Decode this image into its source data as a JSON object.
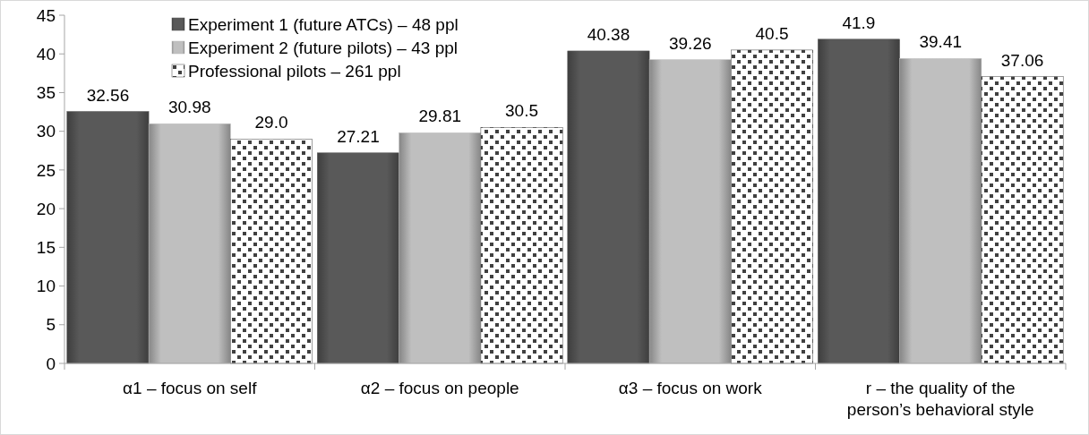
{
  "chart_data": {
    "type": "bar",
    "categories": [
      "α1 – focus on self",
      "α2 – focus on people",
      "α3 – focus on work",
      "r – the quality of the person’s behavioral style"
    ],
    "series": [
      {
        "name": "Experiment 1 (future ATCs) – 48 ppl",
        "color": "#595959",
        "values": [
          32.56,
          27.21,
          40.38,
          41.9
        ],
        "value_labels": [
          "32.56",
          "27.21",
          "40.38",
          "41.9"
        ]
      },
      {
        "name": "Experiment 2 (future pilots) – 43 ppl",
        "color": "#bfbfbf",
        "values": [
          30.98,
          29.81,
          39.26,
          39.41
        ],
        "value_labels": [
          "30.98",
          "29.81",
          "39.26",
          "39.41"
        ]
      },
      {
        "name": "Professional pilots – 261 ppl",
        "color": "#404040",
        "values": [
          29.0,
          30.5,
          40.5,
          37.06
        ],
        "value_labels": [
          "29.0",
          "30.5",
          "40.5",
          "37.06"
        ]
      }
    ],
    "ylim": [
      0,
      45
    ],
    "yticks": [
      0,
      5,
      10,
      15,
      20,
      25,
      30,
      35,
      40,
      45
    ],
    "legend": "top left",
    "grid": false
  }
}
